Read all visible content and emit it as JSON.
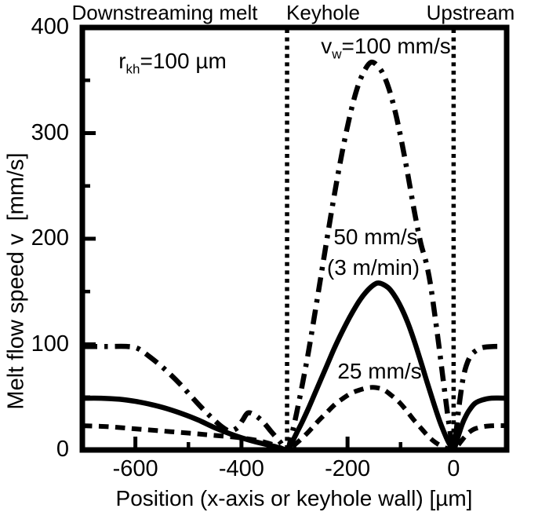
{
  "figure": {
    "region_labels": {
      "left": "Downstreaming melt",
      "middle": "Keyhole",
      "right": "Upstream"
    },
    "annotations": {
      "rkh": {
        "main": "r",
        "sub": "kh",
        "rest": "=100 µm"
      },
      "vw": {
        "main": "v",
        "sub": "w",
        "rest": "=100 mm/s"
      },
      "series50_line1": "50 mm/s",
      "series50_line2": "(3 m/min)",
      "series25": "25 mm/s"
    }
  },
  "chart_data": {
    "type": "line",
    "title": "",
    "xlabel": "Position (x-axis or keyhole wall) [µm]",
    "ylabel": "Melt flow speed v  [mm/s]",
    "xlim": [
      -700,
      100
    ],
    "ylim": [
      0,
      400
    ],
    "x_major_ticks": [
      -600,
      -400,
      -200,
      0
    ],
    "x_minor_ticks": [
      -500,
      -300,
      -100
    ],
    "y_major_ticks": [
      0,
      100,
      200,
      300,
      400
    ],
    "y_minor_ticks": [
      50,
      150,
      250,
      350
    ],
    "region_boundaries_x": [
      -314,
      0
    ],
    "regions": [
      "Downstreaming melt",
      "Keyhole",
      "Upstream"
    ],
    "keyhole_radius_um": 100,
    "line_color": "#000000",
    "background": "#ffffff",
    "series": [
      {
        "name": "vw=100 mm/s",
        "line_style": "dash-dot",
        "points": [
          [
            -700,
            98
          ],
          [
            -655,
            98
          ],
          [
            -615,
            98
          ],
          [
            -595,
            96
          ],
          [
            -575,
            89
          ],
          [
            -555,
            81
          ],
          [
            -535,
            72
          ],
          [
            -515,
            62
          ],
          [
            -495,
            51
          ],
          [
            -475,
            40
          ],
          [
            -455,
            30
          ],
          [
            -437,
            22
          ],
          [
            -422,
            18
          ],
          [
            -408,
            21
          ],
          [
            -398,
            28
          ],
          [
            -388,
            35
          ],
          [
            -375,
            33
          ],
          [
            -360,
            27
          ],
          [
            -345,
            18
          ],
          [
            -328,
            8
          ],
          [
            -314,
            0
          ],
          [
            -305,
            15
          ],
          [
            -296,
            35
          ],
          [
            -286,
            60
          ],
          [
            -274,
            92
          ],
          [
            -262,
            128
          ],
          [
            -250,
            165
          ],
          [
            -238,
            202
          ],
          [
            -226,
            238
          ],
          [
            -214,
            272
          ],
          [
            -202,
            302
          ],
          [
            -190,
            328
          ],
          [
            -178,
            348
          ],
          [
            -166,
            361
          ],
          [
            -156,
            367
          ],
          [
            -146,
            365
          ],
          [
            -134,
            357
          ],
          [
            -122,
            342
          ],
          [
            -110,
            320
          ],
          [
            -98,
            292
          ],
          [
            -86,
            260
          ],
          [
            -74,
            226
          ],
          [
            -62,
            196
          ],
          [
            -52,
            178
          ],
          [
            -44,
            158
          ],
          [
            -36,
            130
          ],
          [
            -28,
            100
          ],
          [
            -20,
            68
          ],
          [
            -12,
            36
          ],
          [
            -5,
            12
          ],
          [
            0,
            0
          ],
          [
            4,
            14
          ],
          [
            8,
            32
          ],
          [
            13,
            52
          ],
          [
            18,
            68
          ],
          [
            24,
            80
          ],
          [
            32,
            89
          ],
          [
            42,
            94
          ],
          [
            55,
            97
          ],
          [
            75,
            98
          ],
          [
            100,
            98
          ]
        ]
      },
      {
        "name": "vw=50 mm/s (3 m/min)",
        "line_style": "solid",
        "points": [
          [
            -700,
            49
          ],
          [
            -665,
            49
          ],
          [
            -630,
            48
          ],
          [
            -600,
            46
          ],
          [
            -570,
            43
          ],
          [
            -540,
            39
          ],
          [
            -510,
            34
          ],
          [
            -480,
            28
          ],
          [
            -450,
            21
          ],
          [
            -420,
            15
          ],
          [
            -390,
            10
          ],
          [
            -360,
            6
          ],
          [
            -335,
            3
          ],
          [
            -314,
            0
          ],
          [
            -305,
            7
          ],
          [
            -296,
            16
          ],
          [
            -286,
            26
          ],
          [
            -274,
            39
          ],
          [
            -262,
            53
          ],
          [
            -250,
            67
          ],
          [
            -238,
            81
          ],
          [
            -226,
            95
          ],
          [
            -214,
            108
          ],
          [
            -202,
            120
          ],
          [
            -190,
            131
          ],
          [
            -178,
            141
          ],
          [
            -166,
            149
          ],
          [
            -154,
            155
          ],
          [
            -144,
            158
          ],
          [
            -134,
            157
          ],
          [
            -122,
            153
          ],
          [
            -110,
            145
          ],
          [
            -98,
            134
          ],
          [
            -86,
            120
          ],
          [
            -74,
            103
          ],
          [
            -62,
            84
          ],
          [
            -50,
            64
          ],
          [
            -38,
            45
          ],
          [
            -26,
            27
          ],
          [
            -14,
            12
          ],
          [
            -6,
            4
          ],
          [
            0,
            0
          ],
          [
            5,
            7
          ],
          [
            10,
            15
          ],
          [
            16,
            24
          ],
          [
            22,
            31
          ],
          [
            30,
            38
          ],
          [
            40,
            44
          ],
          [
            52,
            47
          ],
          [
            70,
            49
          ],
          [
            100,
            49
          ]
        ]
      },
      {
        "name": "vw=25 mm/s",
        "line_style": "dashed",
        "points": [
          [
            -700,
            23
          ],
          [
            -650,
            22
          ],
          [
            -600,
            20
          ],
          [
            -550,
            18
          ],
          [
            -500,
            16
          ],
          [
            -455,
            14
          ],
          [
            -410,
            12
          ],
          [
            -370,
            9
          ],
          [
            -340,
            5
          ],
          [
            -314,
            0
          ],
          [
            -302,
            4
          ],
          [
            -288,
            10
          ],
          [
            -272,
            18
          ],
          [
            -256,
            27
          ],
          [
            -240,
            35
          ],
          [
            -224,
            43
          ],
          [
            -208,
            49
          ],
          [
            -192,
            54
          ],
          [
            -176,
            57
          ],
          [
            -160,
            59
          ],
          [
            -146,
            59
          ],
          [
            -132,
            57
          ],
          [
            -118,
            52
          ],
          [
            -104,
            46
          ],
          [
            -90,
            38
          ],
          [
            -76,
            29
          ],
          [
            -62,
            21
          ],
          [
            -48,
            13
          ],
          [
            -34,
            7
          ],
          [
            -20,
            3
          ],
          [
            -10,
            1
          ],
          [
            0,
            0
          ],
          [
            6,
            3
          ],
          [
            14,
            8
          ],
          [
            22,
            13
          ],
          [
            30,
            17
          ],
          [
            40,
            20
          ],
          [
            55,
            22
          ],
          [
            75,
            23
          ],
          [
            100,
            23
          ]
        ]
      }
    ]
  }
}
